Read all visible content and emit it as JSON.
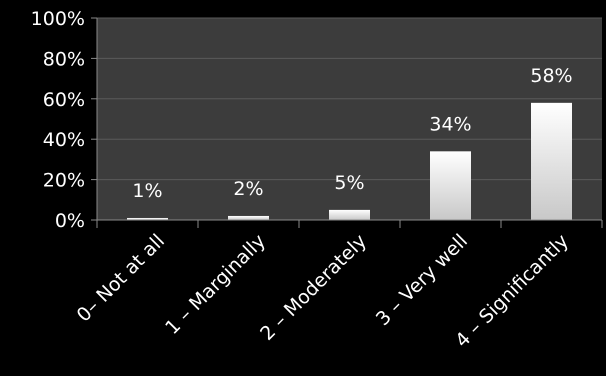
{
  "chart_data": {
    "type": "bar",
    "title": "",
    "xlabel": "",
    "ylabel": "",
    "categories": [
      "0– Not at all",
      "1 – Marginally",
      "2 – Moderately",
      "3 – Very well",
      "4 – Significantly"
    ],
    "values": [
      1,
      2,
      5,
      34,
      58
    ],
    "data_labels": [
      "1%",
      "2%",
      "5%",
      "34%",
      "58%"
    ],
    "ylim": [
      0,
      100
    ],
    "yticks": [
      0,
      20,
      40,
      60,
      80,
      100
    ],
    "ytick_labels": [
      "0%",
      "20%",
      "40%",
      "60%",
      "80%",
      "100%"
    ],
    "grid": true,
    "legend": "none",
    "colors": {
      "background": "#000000",
      "plot_area": "#3c3c3c",
      "gridline": "#5a5a5a",
      "bar_light": "#ffffff",
      "bar_dark": "#c8c8c8",
      "text": "#ffffff"
    }
  }
}
